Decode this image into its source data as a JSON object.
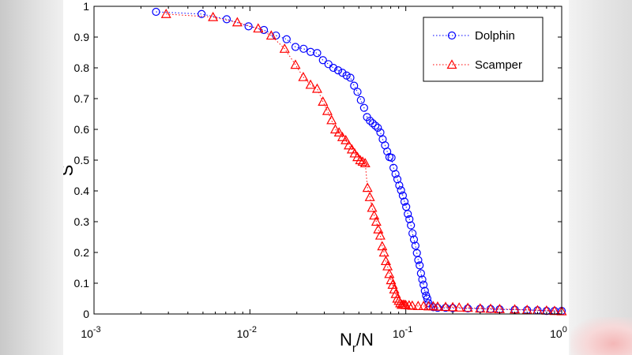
{
  "chart_data": {
    "type": "scatter",
    "title": "",
    "xlabel": "N_r/N",
    "ylabel": "S",
    "xscale": "log",
    "xlim": [
      0.001,
      1
    ],
    "ylim": [
      0,
      1
    ],
    "grid": false,
    "legend_position": "top-right",
    "x_ticks": [
      {
        "base": "10",
        "exp": "-3"
      },
      {
        "base": "10",
        "exp": "-2"
      },
      {
        "base": "10",
        "exp": "-1"
      },
      {
        "base": "10",
        "exp": "0"
      }
    ],
    "y_ticks": [
      "0",
      "0.1",
      "0.2",
      "0.3",
      "0.4",
      "0.5",
      "0.6",
      "0.7",
      "0.8",
      "0.9",
      "1"
    ],
    "series": [
      {
        "name": "Dolphin",
        "color": "#0000ff",
        "marker": "circle",
        "line": "dotted",
        "x": [
          0.0025,
          0.0049,
          0.0071,
          0.0098,
          0.0123,
          0.0147,
          0.0172,
          0.0196,
          0.0221,
          0.0245,
          0.027,
          0.0294,
          0.0319,
          0.0343,
          0.0368,
          0.0392,
          0.0417,
          0.0441,
          0.0466,
          0.049,
          0.0515,
          0.054,
          0.0564,
          0.0589,
          0.0613,
          0.0638,
          0.0662,
          0.0687,
          0.0711,
          0.0736,
          0.076,
          0.0785,
          0.081,
          0.0834,
          0.0859,
          0.0883,
          0.0908,
          0.0932,
          0.0957,
          0.0981,
          0.1006,
          0.103,
          0.1055,
          0.1079,
          0.1104,
          0.1128,
          0.1153,
          0.1178,
          0.1202,
          0.1227,
          0.1251,
          0.1276,
          0.13,
          0.1325,
          0.135,
          0.1374,
          0.1399,
          0.142,
          0.15,
          0.16,
          0.18,
          0.2,
          0.25,
          0.3,
          0.35,
          0.4,
          0.5,
          0.6,
          0.7,
          0.8,
          0.9,
          1.0
        ],
        "y": [
          0.982,
          0.975,
          0.958,
          0.935,
          0.923,
          0.905,
          0.893,
          0.868,
          0.862,
          0.852,
          0.848,
          0.825,
          0.812,
          0.8,
          0.792,
          0.784,
          0.775,
          0.768,
          0.742,
          0.722,
          0.695,
          0.67,
          0.64,
          0.628,
          0.62,
          0.612,
          0.605,
          0.59,
          0.568,
          0.548,
          0.528,
          0.51,
          0.508,
          0.475,
          0.455,
          0.438,
          0.418,
          0.402,
          0.385,
          0.365,
          0.348,
          0.325,
          0.308,
          0.288,
          0.262,
          0.242,
          0.222,
          0.198,
          0.175,
          0.158,
          0.132,
          0.112,
          0.095,
          0.075,
          0.06,
          0.05,
          0.035,
          0.025,
          0.022,
          0.02,
          0.02,
          0.019,
          0.018,
          0.017,
          0.016,
          0.015,
          0.014,
          0.013,
          0.012,
          0.01,
          0.01,
          0.01
        ]
      },
      {
        "name": "Scamper",
        "color": "#ff0000",
        "marker": "triangle",
        "line": "dotted",
        "x": [
          0.0029,
          0.0058,
          0.0083,
          0.0113,
          0.0137,
          0.0167,
          0.0196,
          0.022,
          0.0245,
          0.027,
          0.0294,
          0.0314,
          0.0334,
          0.0353,
          0.0373,
          0.0392,
          0.0412,
          0.0431,
          0.0451,
          0.047,
          0.049,
          0.051,
          0.0529,
          0.0549,
          0.0568,
          0.0588,
          0.0608,
          0.0627,
          0.0647,
          0.0666,
          0.0686,
          0.0706,
          0.0725,
          0.0745,
          0.0764,
          0.0784,
          0.0804,
          0.0823,
          0.0843,
          0.0862,
          0.0882,
          0.0902,
          0.0921,
          0.0941,
          0.096,
          0.098,
          0.1,
          0.105,
          0.11,
          0.12,
          0.13,
          0.14,
          0.15,
          0.16,
          0.18,
          0.2,
          0.22,
          0.25,
          0.3,
          0.35,
          0.4,
          0.5,
          0.6,
          0.7,
          0.8,
          0.9,
          1.0
        ],
        "y": [
          0.975,
          0.965,
          0.948,
          0.928,
          0.905,
          0.862,
          0.81,
          0.77,
          0.745,
          0.732,
          0.69,
          0.66,
          0.63,
          0.6,
          0.59,
          0.575,
          0.565,
          0.548,
          0.535,
          0.522,
          0.51,
          0.5,
          0.495,
          0.49,
          0.41,
          0.38,
          0.345,
          0.32,
          0.3,
          0.275,
          0.255,
          0.22,
          0.2,
          0.172,
          0.155,
          0.13,
          0.11,
          0.095,
          0.08,
          0.065,
          0.05,
          0.043,
          0.035,
          0.03,
          0.03,
          0.03,
          0.029,
          0.028,
          0.027,
          0.026,
          0.026,
          0.025,
          0.025,
          0.024,
          0.023,
          0.022,
          0.021,
          0.02,
          0.018,
          0.017,
          0.016,
          0.015,
          0.013,
          0.012,
          0.011,
          0.01,
          0.009
        ]
      }
    ]
  }
}
